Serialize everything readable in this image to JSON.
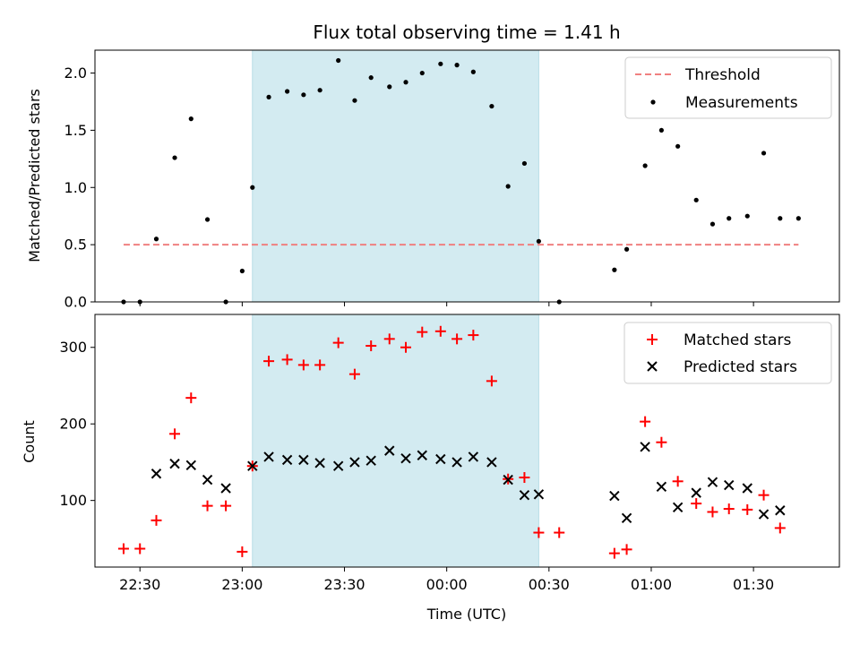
{
  "chart_data": [
    {
      "type": "scatter",
      "title": "Flux total observing time = 1.41 h",
      "ylabel": "Matched/Predicted stars",
      "xlabel": "",
      "xlim_hours": [
        22.28,
        25.92
      ],
      "ylim": [
        0,
        2.2
      ],
      "yticks": [
        0.0,
        0.5,
        1.0,
        1.5,
        2.0
      ],
      "ytick_labels": [
        "0.0",
        "0.5",
        "1.0",
        "1.5",
        "2.0"
      ],
      "shaded_span_hours": [
        23.05,
        24.45
      ],
      "shade_color": "#d3ebf1",
      "threshold": {
        "name": "Threshold",
        "value": 0.5,
        "x_range_hours": [
          22.42,
          25.72
        ],
        "color": "#f08080"
      },
      "legend_position": "top-right",
      "series": [
        {
          "name": "Measurements",
          "color": "#000000",
          "x": [
            22.42,
            22.5,
            22.58,
            22.67,
            22.75,
            22.83,
            22.92,
            23.0,
            23.05,
            23.13,
            23.22,
            23.3,
            23.38,
            23.47,
            23.55,
            23.63,
            23.72,
            23.8,
            23.88,
            23.97,
            24.05,
            24.13,
            24.22,
            24.3,
            24.38,
            24.45,
            24.55,
            24.82,
            24.88,
            24.97,
            25.05,
            25.13,
            25.22,
            25.3,
            25.38,
            25.47,
            25.55,
            25.63,
            25.72
          ],
          "values": [
            0.0,
            0.0,
            0.55,
            1.26,
            1.6,
            0.72,
            0.0,
            0.27,
            1.0,
            1.79,
            1.84,
            1.81,
            1.85,
            2.11,
            1.76,
            1.96,
            1.88,
            1.92,
            2.0,
            2.08,
            2.07,
            2.01,
            1.71,
            1.01,
            1.21,
            0.53,
            0.0,
            0.28,
            0.46,
            1.19,
            1.5,
            1.36,
            0.89,
            0.68,
            0.73,
            0.75,
            1.3,
            0.73,
            0.73
          ]
        }
      ]
    },
    {
      "type": "scatter",
      "title": "",
      "ylabel": "Count",
      "xlabel": "Time (UTC)",
      "xlim_hours": [
        22.28,
        25.92
      ],
      "ylim": [
        13,
        343
      ],
      "yticks": [
        100,
        200,
        300
      ],
      "ytick_labels": [
        "100",
        "200",
        "300"
      ],
      "xticks_hours": [
        22.5,
        23.0,
        23.5,
        24.0,
        24.5,
        25.0,
        25.5
      ],
      "xtick_labels": [
        "22:30",
        "23:00",
        "23:30",
        "00:00",
        "00:30",
        "01:00",
        "01:30"
      ],
      "shaded_span_hours": [
        23.05,
        24.45
      ],
      "shade_color": "#d3ebf1",
      "legend_position": "top-right",
      "series": [
        {
          "name": "Matched stars",
          "color": "#ff0000",
          "marker": "plus",
          "x": [
            22.42,
            22.5,
            22.58,
            22.67,
            22.75,
            22.83,
            22.92,
            23.0,
            23.05,
            23.13,
            23.22,
            23.3,
            23.38,
            23.47,
            23.55,
            23.63,
            23.72,
            23.8,
            23.88,
            23.97,
            24.05,
            24.13,
            24.22,
            24.3,
            24.38,
            24.45,
            24.55,
            24.82,
            24.88,
            24.97,
            25.05,
            25.13,
            25.22,
            25.3,
            25.38,
            25.47,
            25.55,
            25.63
          ],
          "values": [
            37,
            37,
            74,
            187,
            234,
            93,
            93,
            33,
            145,
            282,
            284,
            277,
            277,
            306,
            265,
            302,
            311,
            300,
            320,
            321,
            311,
            316,
            256,
            128,
            130,
            58,
            58,
            31,
            36,
            203,
            176,
            125,
            96,
            85,
            89,
            88,
            107,
            64
          ]
        },
        {
          "name": "Predicted stars",
          "color": "#000000",
          "marker": "x",
          "x": [
            22.58,
            22.67,
            22.75,
            22.83,
            22.92,
            23.05,
            23.13,
            23.22,
            23.3,
            23.38,
            23.47,
            23.55,
            23.63,
            23.72,
            23.8,
            23.88,
            23.97,
            24.05,
            24.13,
            24.22,
            24.3,
            24.38,
            24.45,
            24.82,
            24.88,
            24.97,
            25.05,
            25.13,
            25.22,
            25.3,
            25.38,
            25.47,
            25.55,
            25.63
          ],
          "values": [
            135,
            148,
            146,
            127,
            116,
            145,
            157,
            153,
            153,
            149,
            145,
            150,
            152,
            165,
            155,
            159,
            154,
            150,
            157,
            150,
            127,
            107,
            108,
            106,
            77,
            170,
            118,
            91,
            110,
            124,
            120,
            116,
            82,
            87
          ]
        }
      ]
    }
  ]
}
